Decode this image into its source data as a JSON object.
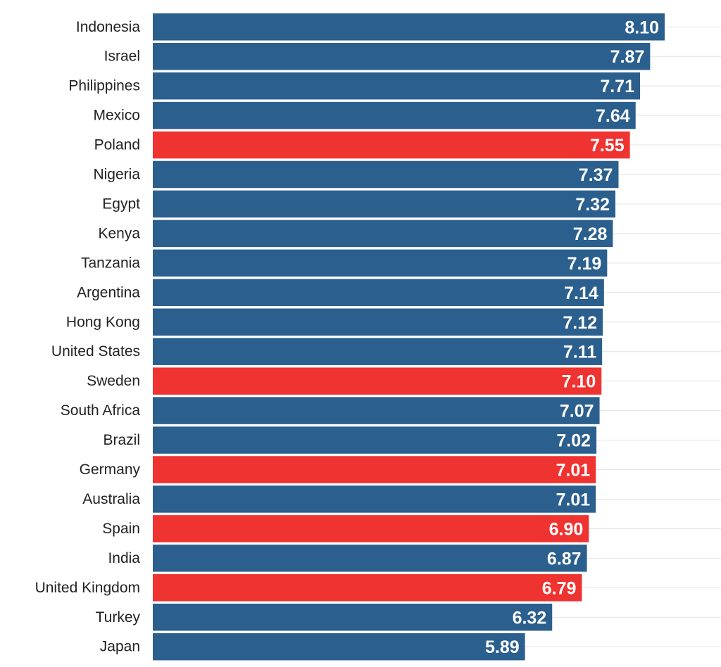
{
  "chart_data": {
    "type": "bar",
    "orientation": "horizontal",
    "categories": [
      "Indonesia",
      "Israel",
      "Philippines",
      "Mexico",
      "Poland",
      "Nigeria",
      "Egypt",
      "Kenya",
      "Tanzania",
      "Argentina",
      "Hong Kong",
      "United States",
      "Sweden",
      "South Africa",
      "Brazil",
      "Germany",
      "Australia",
      "Spain",
      "India",
      "United Kingdom",
      "Turkey",
      "Japan"
    ],
    "values": [
      8.1,
      7.87,
      7.71,
      7.64,
      7.55,
      7.37,
      7.32,
      7.28,
      7.19,
      7.14,
      7.12,
      7.11,
      7.1,
      7.07,
      7.02,
      7.01,
      7.01,
      6.9,
      6.87,
      6.79,
      6.32,
      5.89
    ],
    "value_labels": [
      "8.10",
      "7.87",
      "7.71",
      "7.64",
      "7.55",
      "7.37",
      "7.32",
      "7.28",
      "7.19",
      "7.14",
      "7.12",
      "7.11",
      "7.10",
      "7.07",
      "7.02",
      "7.01",
      "7.01",
      "6.90",
      "6.87",
      "6.79",
      "6.32",
      "5.89"
    ],
    "highlighted": [
      "Poland",
      "Sweden",
      "Germany",
      "Spain",
      "United Kingdom"
    ],
    "xlim": [
      0,
      8.1
    ],
    "grid": true,
    "title": "",
    "xlabel": "",
    "ylabel": ""
  },
  "colors": {
    "default_bar": "#2b5f8e",
    "highlight_bar": "#ef3330",
    "value_text": "#ffffff",
    "category_text": "#222222",
    "gridline": "#e3e3e3"
  }
}
